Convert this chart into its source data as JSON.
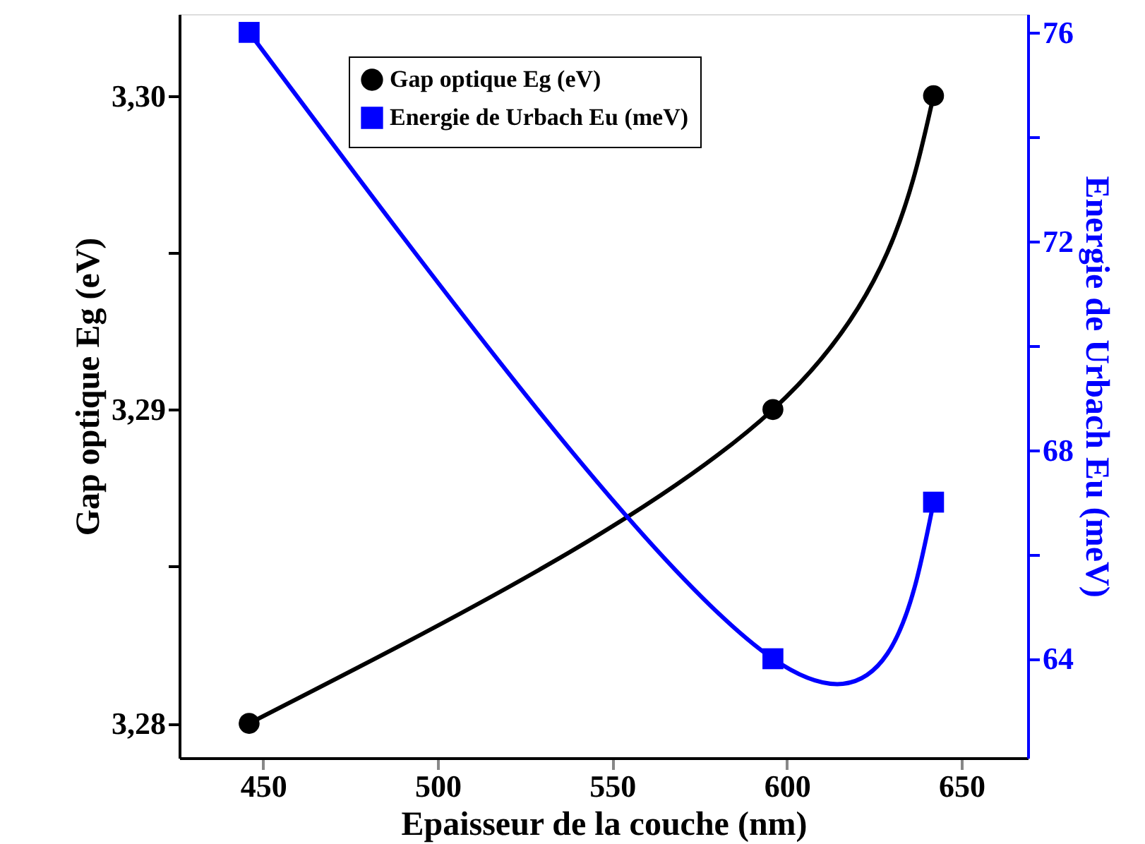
{
  "chart_data": {
    "type": "line",
    "xlabel": "Epaisseur de la couche (nm)",
    "ylabel": "Gap optique Eg (eV)",
    "y2label": "Energie de Urbach Eu (meV)",
    "x": [
      446,
      596,
      642
    ],
    "series": [
      {
        "name": "Gap optique Eg (eV)",
        "color": "#000000",
        "values": [
          3.28,
          3.29,
          3.3
        ],
        "marker": "circle"
      },
      {
        "name": "Energie de Urbach Eu (meV)",
        "color": "#0000ff",
        "values": [
          76,
          64,
          67
        ],
        "marker": "square",
        "axis": "y2"
      }
    ],
    "xlim": [
      426,
      669
    ],
    "xticks": [
      450,
      500,
      550,
      600,
      650
    ],
    "ylim": [
      3.2789,
      3.3026
    ],
    "yticks": [
      {
        "value": 3.28,
        "label": "3,28"
      },
      {
        "value": 3.285,
        "label": null
      },
      {
        "value": 3.29,
        "label": "3,29"
      },
      {
        "value": 3.295,
        "label": null
      },
      {
        "value": 3.3,
        "label": "3,30"
      }
    ],
    "y2lim": [
      62.1,
      76.35
    ],
    "y2ticks": [
      64,
      {
        "value": 66,
        "label": null
      },
      68,
      {
        "value": 70,
        "label": null
      },
      72,
      {
        "value": 74,
        "label": null
      },
      76
    ],
    "grid": false,
    "legend": "top",
    "line_style": "solid"
  }
}
